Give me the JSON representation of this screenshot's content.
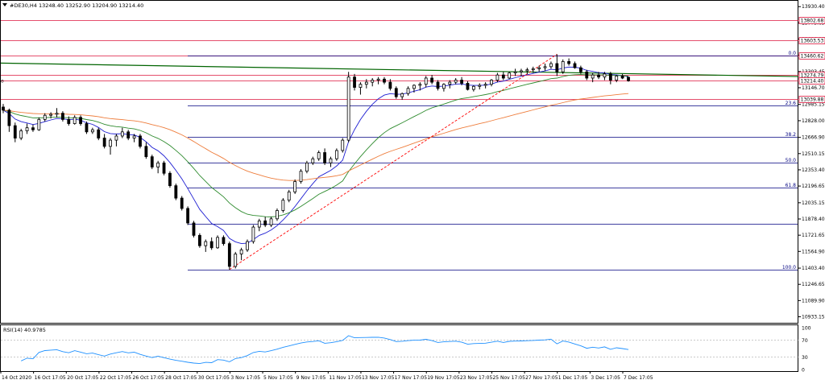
{
  "chart_data": {
    "type": "candlestick",
    "title": "#DE30,H4  13248.40 13252.90 13204.90 13214.40",
    "symbol": "#DE30",
    "timeframe": "H4",
    "ohlc_readout": {
      "open": 13248.4,
      "high": 13252.9,
      "low": 13204.9,
      "close": 13214.4
    },
    "y_range": [
      10933.15,
      13940.0
    ],
    "price_ticks": [
      "13930.40",
      "13773.65",
      "13616.90",
      "13460.62",
      "13303.45",
      "13146.70",
      "12985.15",
      "12828.00",
      "12666.90",
      "12510.15",
      "12353.40",
      "12196.65",
      "12035.15",
      "11878.40",
      "11721.65",
      "11564.90",
      "11403.40",
      "11246.65",
      "11089.90",
      "10933.15"
    ],
    "x_labels": [
      "14 Oct 2020",
      "16 Oct 17:05",
      "20 Oct 17:05",
      "22 Oct 17:05",
      "26 Oct 17:05",
      "28 Oct 17:05",
      "30 Oct 17:05",
      "3 Nov 17:05",
      "5 Nov 17:05",
      "9 Nov 17:05",
      "11 Nov 17:05",
      "13 Nov 17:05",
      "17 Nov 17:05",
      "19 Nov 17:05",
      "23 Nov 17:05",
      "25 Nov 17:05",
      "27 Nov 17:05",
      "1 Dec 17:05",
      "3 Dec 17:05",
      "7 Dec 17:05"
    ],
    "horizontal_levels": [
      {
        "price": 13802.68,
        "label": "13802.68",
        "color": "#dc143c"
      },
      {
        "price": 13603.53,
        "label": "13603.53",
        "color": "#dc143c"
      },
      {
        "price": 13460.62,
        "label": "13460.62",
        "color": "#dc143c"
      },
      {
        "price": 13274.79,
        "label": "13274.79",
        "color": "#dc143c"
      },
      {
        "price": 13214.4,
        "label": "13214.40",
        "color": "#dc143c"
      },
      {
        "price": 13039.88,
        "label": "13039.88",
        "color": "#dc143c"
      }
    ],
    "fibonacci": {
      "high": 13460.62,
      "low": 11390.0,
      "levels": [
        {
          "ratio": 0.0,
          "label": "0.0"
        },
        {
          "ratio": 0.236,
          "label": "23.6"
        },
        {
          "ratio": 0.382,
          "label": "38.2"
        },
        {
          "ratio": 0.5,
          "label": "50.0"
        },
        {
          "ratio": 0.618,
          "label": "61.8"
        },
        {
          "ratio": 0.786,
          "label": ""
        },
        {
          "ratio": 1.0,
          "label": "100.0"
        }
      ],
      "color": "#000080"
    },
    "candles": [
      [
        12960,
        12990,
        12900,
        12930
      ],
      [
        12930,
        12945,
        12720,
        12780
      ],
      [
        12780,
        12810,
        12620,
        12660
      ],
      [
        12660,
        12750,
        12640,
        12730
      ],
      [
        12730,
        12800,
        12700,
        12760
      ],
      [
        12760,
        12790,
        12720,
        12740
      ],
      [
        12740,
        12860,
        12730,
        12840
      ],
      [
        12840,
        12900,
        12820,
        12880
      ],
      [
        12880,
        12910,
        12850,
        12890
      ],
      [
        12890,
        12950,
        12860,
        12900
      ],
      [
        12900,
        12920,
        12820,
        12840
      ],
      [
        12840,
        12870,
        12780,
        12800
      ],
      [
        12800,
        12880,
        12790,
        12860
      ],
      [
        12860,
        12880,
        12780,
        12800
      ],
      [
        12800,
        12820,
        12700,
        12720
      ],
      [
        12720,
        12760,
        12700,
        12740
      ],
      [
        12740,
        12760,
        12640,
        12660
      ],
      [
        12660,
        12700,
        12560,
        12580
      ],
      [
        12580,
        12660,
        12500,
        12640
      ],
      [
        12640,
        12700,
        12580,
        12680
      ],
      [
        12680,
        12760,
        12660,
        12720
      ],
      [
        12720,
        12740,
        12640,
        12660
      ],
      [
        12660,
        12700,
        12620,
        12680
      ],
      [
        12680,
        12700,
        12560,
        12580
      ],
      [
        12580,
        12620,
        12460,
        12480
      ],
      [
        12480,
        12500,
        12360,
        12380
      ],
      [
        12380,
        12440,
        12320,
        12420
      ],
      [
        12420,
        12440,
        12300,
        12320
      ],
      [
        12320,
        12340,
        12180,
        12200
      ],
      [
        12200,
        12220,
        12060,
        12080
      ],
      [
        12080,
        12100,
        11960,
        11980
      ],
      [
        11980,
        12000,
        11820,
        11840
      ],
      [
        11840,
        11860,
        11700,
        11720
      ],
      [
        11720,
        11740,
        11600,
        11620
      ],
      [
        11620,
        11680,
        11560,
        11660
      ],
      [
        11660,
        11700,
        11580,
        11600
      ],
      [
        11600,
        11720,
        11590,
        11700
      ],
      [
        11700,
        11720,
        11620,
        11640
      ],
      [
        11640,
        11660,
        11390,
        11420
      ],
      [
        11420,
        11560,
        11400,
        11540
      ],
      [
        11540,
        11600,
        11480,
        11580
      ],
      [
        11580,
        11680,
        11560,
        11660
      ],
      [
        11660,
        11820,
        11640,
        11800
      ],
      [
        11800,
        11880,
        11760,
        11860
      ],
      [
        11860,
        11900,
        11800,
        11820
      ],
      [
        11820,
        11900,
        11800,
        11880
      ],
      [
        11880,
        11980,
        11860,
        11960
      ],
      [
        11960,
        12080,
        11940,
        12060
      ],
      [
        12060,
        12160,
        12040,
        12140
      ],
      [
        12140,
        12260,
        12120,
        12240
      ],
      [
        12240,
        12360,
        12220,
        12340
      ],
      [
        12340,
        12440,
        12320,
        12420
      ],
      [
        12420,
        12480,
        12400,
        12460
      ],
      [
        12460,
        12540,
        12440,
        12520
      ],
      [
        12520,
        12560,
        12400,
        12420
      ],
      [
        12420,
        12480,
        12380,
        12460
      ],
      [
        12460,
        12560,
        12440,
        12540
      ],
      [
        12540,
        12660,
        12520,
        12640
      ],
      [
        12640,
        13300,
        12620,
        13250
      ],
      [
        13250,
        13280,
        13120,
        13150
      ],
      [
        13150,
        13200,
        13080,
        13180
      ],
      [
        13180,
        13230,
        13140,
        13200
      ],
      [
        13200,
        13240,
        13160,
        13220
      ],
      [
        13220,
        13250,
        13180,
        13230
      ],
      [
        13230,
        13250,
        13180,
        13200
      ],
      [
        13200,
        13230,
        13120,
        13140
      ],
      [
        13140,
        13160,
        13040,
        13060
      ],
      [
        13060,
        13100,
        13030,
        13090
      ],
      [
        13090,
        13160,
        13070,
        13140
      ],
      [
        13140,
        13180,
        13100,
        13170
      ],
      [
        13170,
        13200,
        13120,
        13180
      ],
      [
        13180,
        13260,
        13150,
        13240
      ],
      [
        13240,
        13270,
        13180,
        13200
      ],
      [
        13200,
        13220,
        13120,
        13140
      ],
      [
        13140,
        13190,
        13110,
        13180
      ],
      [
        13180,
        13220,
        13140,
        13200
      ],
      [
        13200,
        13240,
        13180,
        13220
      ],
      [
        13220,
        13250,
        13170,
        13190
      ],
      [
        13190,
        13210,
        13120,
        13130
      ],
      [
        13130,
        13170,
        13110,
        13160
      ],
      [
        13160,
        13190,
        13130,
        13170
      ],
      [
        13170,
        13200,
        13140,
        13180
      ],
      [
        13180,
        13230,
        13160,
        13220
      ],
      [
        13220,
        13290,
        13200,
        13270
      ],
      [
        13270,
        13300,
        13220,
        13240
      ],
      [
        13240,
        13300,
        13230,
        13290
      ],
      [
        13290,
        13330,
        13260,
        13300
      ],
      [
        13300,
        13330,
        13260,
        13310
      ],
      [
        13310,
        13340,
        13280,
        13320
      ],
      [
        13320,
        13350,
        13290,
        13330
      ],
      [
        13330,
        13360,
        13300,
        13340
      ],
      [
        13340,
        13380,
        13310,
        13350
      ],
      [
        13350,
        13400,
        13330,
        13380
      ],
      [
        13380,
        13470,
        13260,
        13300
      ],
      [
        13300,
        13420,
        13280,
        13400
      ],
      [
        13400,
        13430,
        13360,
        13380
      ],
      [
        13380,
        13400,
        13330,
        13340
      ],
      [
        13340,
        13360,
        13280,
        13300
      ],
      [
        13300,
        13320,
        13220,
        13240
      ],
      [
        13240,
        13290,
        13200,
        13270
      ],
      [
        13270,
        13300,
        13230,
        13250
      ],
      [
        13250,
        13300,
        13220,
        13280
      ],
      [
        13280,
        13300,
        13180,
        13220
      ],
      [
        13220,
        13270,
        13200,
        13260
      ],
      [
        13260,
        13280,
        13230,
        13240
      ],
      [
        13248.4,
        13252.9,
        13204.9,
        13214.4
      ]
    ],
    "moving_averages": [
      {
        "period": 8,
        "color": "#1e1ed2"
      },
      {
        "period": 21,
        "color": "#2e8b2e"
      },
      {
        "period": 55,
        "color": "#ee7d3c"
      }
    ],
    "long_ma_color": "#006400",
    "trendline_color": "#ff0000",
    "rsi": {
      "label": "RSI(14) 40.9785",
      "ticks": [
        "100",
        "70",
        "30",
        "0"
      ],
      "levels": [
        70,
        30
      ],
      "color": "#1e90ff"
    }
  }
}
